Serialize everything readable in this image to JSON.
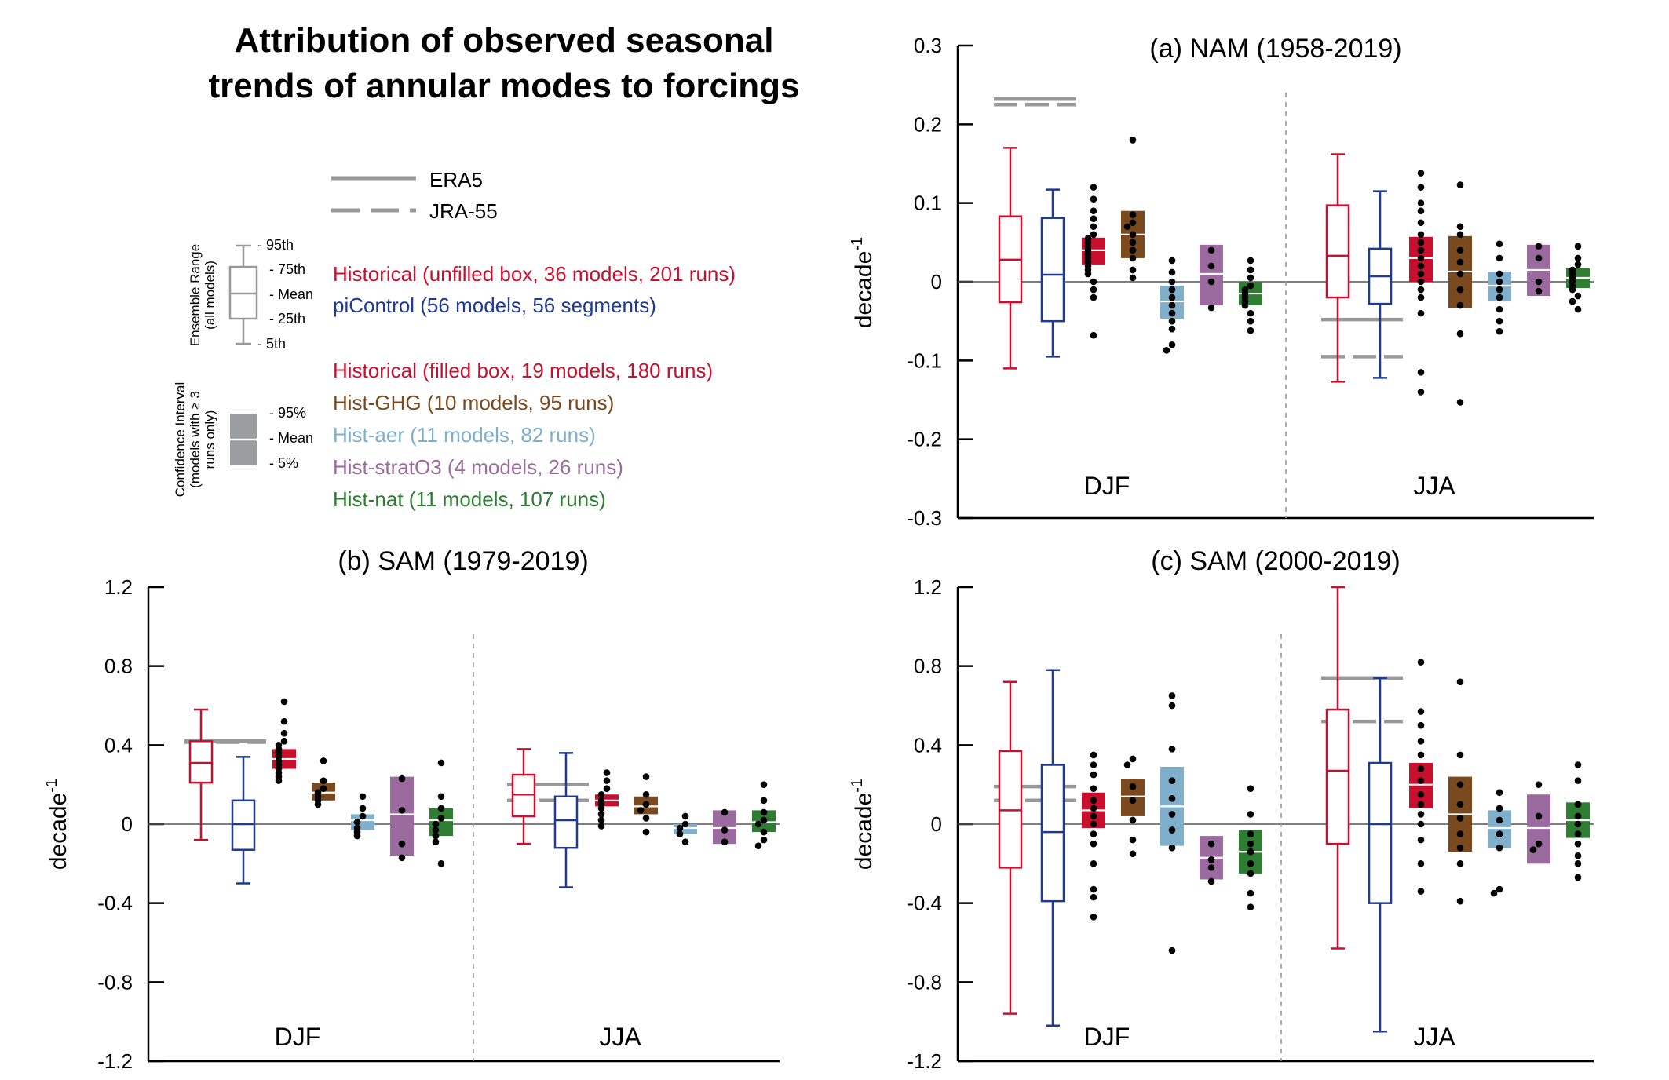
{
  "figure": {
    "title_line1": "Attribution of observed seasonal",
    "title_line2": "trends of annular modes to forcings"
  },
  "colors": {
    "historical": "#C8102E",
    "picontrol": "#1F3A93",
    "hist_ghg": "#7A4A1E",
    "hist_aer": "#7FAFCB",
    "hist_strato3": "#9B6A9E",
    "hist_nat": "#2E7D32",
    "obs": "#999999",
    "dots": "#000000"
  },
  "legend": {
    "obs_era5": "ERA5",
    "obs_jra55": "JRA-55",
    "ensemble_range_label_1": "Ensemble Range",
    "ensemble_range_label_2": "(all models)",
    "p95": "- 95th",
    "p75": "- 75th",
    "mean": "- Mean",
    "p25": "- 25th",
    "p5": "- 5th",
    "ci_label_1": "Confidence Interval",
    "ci_label_2": "(models with ≥ 3",
    "ci_label_3": "runs only)",
    "ci95": "- 95%",
    "ci_mean": "- Mean",
    "ci5": "- 5%",
    "entries": [
      {
        "key": "historical",
        "text": "Historical (unfilled box, 36 models, 201 runs)"
      },
      {
        "key": "picontrol",
        "text": "piControl (56 models, 56 segments)"
      },
      {
        "key": "historical",
        "text": "Historical (filled box, 19 models, 180 runs)"
      },
      {
        "key": "hist_ghg",
        "text": "Hist-GHG (10 models, 95 runs)"
      },
      {
        "key": "hist_aer",
        "text": "Hist-aer (11 models, 82 runs)"
      },
      {
        "key": "hist_strato3",
        "text": "Hist-stratO3 (4 models, 26 runs)"
      },
      {
        "key": "hist_nat",
        "text": "Hist-nat (11 models, 107 runs)"
      }
    ]
  },
  "chart_data": [
    {
      "type": "box",
      "title": "(a) NAM (1958-2019)",
      "ylabel": "decade",
      "ylabel_sup": "-1",
      "ylim": [
        -0.3,
        0.3
      ],
      "yticks": [
        -0.3,
        -0.2,
        -0.1,
        0,
        0.1,
        0.2,
        0.3
      ],
      "ytick_labels": [
        "-0.3",
        "-0.2",
        "-0.1",
        "0",
        "0.1",
        "0.2",
        "0.3"
      ],
      "groups": [
        {
          "label": "DJF",
          "obs": {
            "era5": 0.232,
            "jra55": 0.225
          },
          "unfilled": [
            {
              "key": "historical",
              "p5": -0.11,
              "p25": -0.026,
              "mean": 0.028,
              "p75": 0.083,
              "p95": 0.17
            },
            {
              "key": "picontrol",
              "p5": -0.095,
              "p25": -0.05,
              "mean": 0.009,
              "p75": 0.081,
              "p95": 0.117
            }
          ],
          "filled": [
            {
              "key": "historical",
              "lo": 0.022,
              "mean": 0.04,
              "hi": 0.056,
              "dots": [
                0.12,
                0.105,
                0.09,
                0.08,
                0.07,
                0.06,
                0.055,
                0.05,
                0.045,
                0.04,
                0.035,
                0.03,
                0.025,
                0.02,
                0.015,
                0.01,
                0.0,
                -0.01,
                -0.02,
                -0.068
              ]
            },
            {
              "key": "hist_ghg",
              "lo": 0.03,
              "mean": 0.06,
              "hi": 0.09,
              "dots": [
                0.18,
                0.085,
                0.075,
                0.07,
                0.06,
                0.05,
                0.04,
                0.03,
                0.015,
                0.005
              ]
            },
            {
              "key": "hist_aer",
              "lo": -0.047,
              "mean": -0.025,
              "hi": -0.005,
              "dots": [
                0.027,
                0.012,
                0.0,
                -0.01,
                -0.02,
                -0.03,
                -0.04,
                -0.05,
                -0.06,
                -0.08,
                -0.087
              ]
            },
            {
              "key": "hist_strato3",
              "lo": -0.03,
              "mean": 0.01,
              "hi": 0.047,
              "dots": [
                0.04,
                0.02,
                0.0,
                -0.033
              ]
            },
            {
              "key": "hist_nat",
              "lo": -0.03,
              "mean": -0.015,
              "hi": 0.0,
              "dots": [
                0.027,
                0.015,
                0.005,
                -0.005,
                -0.01,
                -0.015,
                -0.02,
                -0.025,
                -0.03,
                -0.04,
                -0.05,
                -0.062
              ]
            }
          ]
        },
        {
          "label": "JJA",
          "obs": {
            "era5": -0.048,
            "jra55": -0.095
          },
          "unfilled": [
            {
              "key": "historical",
              "p5": -0.127,
              "p25": -0.02,
              "mean": 0.033,
              "p75": 0.097,
              "p95": 0.162
            },
            {
              "key": "picontrol",
              "p5": -0.122,
              "p25": -0.028,
              "mean": 0.007,
              "p75": 0.042,
              "p95": 0.115
            }
          ],
          "filled": [
            {
              "key": "historical",
              "lo": 0.0,
              "mean": 0.03,
              "hi": 0.057,
              "dots": [
                0.138,
                0.12,
                0.1,
                0.09,
                0.075,
                0.06,
                0.05,
                0.04,
                0.03,
                0.02,
                0.01,
                0.0,
                -0.01,
                -0.02,
                -0.04,
                -0.115,
                -0.14
              ]
            },
            {
              "key": "hist_ghg",
              "lo": -0.033,
              "mean": 0.013,
              "hi": 0.058,
              "dots": [
                0.123,
                0.07,
                0.06,
                0.04,
                0.025,
                0.01,
                -0.01,
                -0.03,
                -0.066,
                -0.153
              ]
            },
            {
              "key": "hist_aer",
              "lo": -0.025,
              "mean": -0.005,
              "hi": 0.013,
              "dots": [
                0.048,
                0.03,
                0.01,
                0.0,
                -0.01,
                -0.02,
                -0.035,
                -0.05,
                -0.063
              ]
            },
            {
              "key": "hist_strato3",
              "lo": -0.018,
              "mean": 0.015,
              "hi": 0.047,
              "dots": [
                0.045,
                0.03,
                0.0,
                -0.012
              ]
            },
            {
              "key": "hist_nat",
              "lo": -0.008,
              "mean": 0.005,
              "hi": 0.017,
              "dots": [
                0.045,
                0.03,
                0.022,
                0.015,
                0.01,
                0.005,
                0.0,
                -0.005,
                -0.01,
                -0.018,
                -0.025,
                -0.035
              ]
            }
          ]
        }
      ]
    },
    {
      "type": "box",
      "title": "(b) SAM (1979-2019)",
      "ylabel": "decade",
      "ylabel_sup": "-1",
      "ylim": [
        -1.2,
        1.2
      ],
      "yticks": [
        -1.2,
        -0.8,
        -0.4,
        0,
        0.4,
        0.8,
        1.2
      ],
      "ytick_labels": [
        "-1.2",
        "-0.8",
        "-0.4",
        "0",
        "0.4",
        "0.8",
        "1.2"
      ],
      "groups": [
        {
          "label": "DJF",
          "obs": {
            "era5": 0.42,
            "jra55": 0.415
          },
          "unfilled": [
            {
              "key": "historical",
              "p5": -0.08,
              "p25": 0.21,
              "mean": 0.31,
              "p75": 0.42,
              "p95": 0.58
            },
            {
              "key": "picontrol",
              "p5": -0.3,
              "p25": -0.13,
              "mean": 0.0,
              "p75": 0.12,
              "p95": 0.34
            }
          ],
          "filled": [
            {
              "key": "historical",
              "lo": 0.28,
              "mean": 0.33,
              "hi": 0.38,
              "dots": [
                0.62,
                0.52,
                0.46,
                0.42,
                0.4,
                0.38,
                0.36,
                0.34,
                0.32,
                0.3,
                0.28,
                0.26,
                0.24,
                0.22
              ]
            },
            {
              "key": "hist_ghg",
              "lo": 0.12,
              "mean": 0.16,
              "hi": 0.21,
              "dots": [
                0.32,
                0.22,
                0.18,
                0.16,
                0.14,
                0.12,
                0.1
              ]
            },
            {
              "key": "hist_aer",
              "lo": -0.03,
              "mean": 0.02,
              "hi": 0.05,
              "dots": [
                0.14,
                0.08,
                0.04,
                0.01,
                -0.02,
                -0.04,
                -0.06
              ]
            },
            {
              "key": "hist_strato3",
              "lo": -0.16,
              "mean": 0.05,
              "hi": 0.24,
              "dots": [
                0.23,
                0.07,
                -0.1,
                -0.17
              ]
            },
            {
              "key": "hist_nat",
              "lo": -0.06,
              "mean": 0.02,
              "hi": 0.08,
              "dots": [
                0.31,
                0.14,
                0.08,
                0.03,
                0.0,
                -0.03,
                -0.06,
                -0.09,
                -0.2
              ]
            }
          ]
        },
        {
          "label": "JJA",
          "obs": {
            "era5": 0.2,
            "jra55": 0.12
          },
          "unfilled": [
            {
              "key": "historical",
              "p5": -0.1,
              "p25": 0.04,
              "mean": 0.15,
              "p75": 0.25,
              "p95": 0.38
            },
            {
              "key": "picontrol",
              "p5": -0.32,
              "p25": -0.12,
              "mean": 0.02,
              "p75": 0.14,
              "p95": 0.36
            }
          ],
          "filled": [
            {
              "key": "historical",
              "lo": 0.09,
              "mean": 0.12,
              "hi": 0.15,
              "dots": [
                0.26,
                0.22,
                0.18,
                0.15,
                0.12,
                0.1,
                0.08,
                0.05,
                0.02,
                -0.01
              ]
            },
            {
              "key": "hist_ghg",
              "lo": 0.05,
              "mean": 0.09,
              "hi": 0.14,
              "dots": [
                0.24,
                0.15,
                0.1,
                0.07,
                0.03,
                -0.04
              ]
            },
            {
              "key": "hist_aer",
              "lo": -0.05,
              "mean": -0.02,
              "hi": 0.0,
              "dots": [
                0.04,
                0.0,
                -0.02,
                -0.05,
                -0.09
              ]
            },
            {
              "key": "hist_strato3",
              "lo": -0.1,
              "mean": -0.02,
              "hi": 0.07,
              "dots": [
                0.06,
                -0.03,
                -0.09
              ]
            },
            {
              "key": "hist_nat",
              "lo": -0.04,
              "mean": 0.01,
              "hi": 0.07,
              "dots": [
                0.2,
                0.12,
                0.06,
                0.02,
                0.0,
                -0.04,
                -0.08,
                -0.11
              ]
            }
          ]
        }
      ]
    },
    {
      "type": "box",
      "title": "(c) SAM (2000-2019)",
      "ylabel": "decade",
      "ylabel_sup": "-1",
      "ylim": [
        -1.2,
        1.2
      ],
      "yticks": [
        -1.2,
        -0.8,
        -0.4,
        0,
        0.4,
        0.8,
        1.2
      ],
      "ytick_labels": [
        "-1.2",
        "-0.8",
        "-0.4",
        "0",
        "0.4",
        "0.8",
        "1.2"
      ],
      "groups": [
        {
          "label": "DJF",
          "obs": {
            "era5": 0.19,
            "jra55": 0.12
          },
          "unfilled": [
            {
              "key": "historical",
              "p5": -0.96,
              "p25": -0.22,
              "mean": 0.07,
              "p75": 0.37,
              "p95": 0.72
            },
            {
              "key": "picontrol",
              "p5": -1.02,
              "p25": -0.39,
              "mean": -0.04,
              "p75": 0.3,
              "p95": 0.78
            }
          ],
          "filled": [
            {
              "key": "historical",
              "lo": -0.02,
              "mean": 0.07,
              "hi": 0.16,
              "dots": [
                0.35,
                0.3,
                0.25,
                0.18,
                0.12,
                0.08,
                0.04,
                0.0,
                -0.05,
                -0.1,
                -0.2,
                -0.33,
                -0.37,
                -0.47
              ]
            },
            {
              "key": "hist_ghg",
              "lo": 0.04,
              "mean": 0.14,
              "hi": 0.23,
              "dots": [
                0.33,
                0.3,
                0.19,
                0.12,
                0.02,
                -0.08,
                -0.15
              ]
            },
            {
              "key": "hist_aer",
              "lo": -0.11,
              "mean": 0.09,
              "hi": 0.29,
              "dots": [
                0.65,
                0.6,
                0.38,
                0.22,
                0.13,
                0.05,
                -0.03,
                -0.12,
                -0.64
              ]
            },
            {
              "key": "hist_strato3",
              "lo": -0.28,
              "mean": -0.17,
              "hi": -0.06,
              "dots": [
                -0.1,
                -0.18,
                -0.22,
                -0.29
              ]
            },
            {
              "key": "hist_nat",
              "lo": -0.25,
              "mean": -0.14,
              "hi": -0.03,
              "dots": [
                0.18,
                0.05,
                -0.05,
                -0.1,
                -0.14,
                -0.2,
                -0.25,
                -0.35,
                -0.42
              ]
            }
          ]
        },
        {
          "label": "JJA",
          "obs": {
            "era5": 0.74,
            "jra55": 0.52
          },
          "unfilled": [
            {
              "key": "historical",
              "p5": -0.63,
              "p25": -0.1,
              "mean": 0.27,
              "p75": 0.58,
              "p95": 1.2
            },
            {
              "key": "picontrol",
              "p5": -1.05,
              "p25": -0.4,
              "mean": 0.0,
              "p75": 0.31,
              "p95": 0.74
            }
          ],
          "filled": [
            {
              "key": "historical",
              "lo": 0.08,
              "mean": 0.2,
              "hi": 0.31,
              "dots": [
                0.82,
                0.57,
                0.5,
                0.42,
                0.35,
                0.28,
                0.22,
                0.15,
                0.1,
                0.05,
                0.0,
                -0.08,
                -0.2,
                -0.34
              ]
            },
            {
              "key": "hist_ghg",
              "lo": -0.14,
              "mean": 0.05,
              "hi": 0.24,
              "dots": [
                0.72,
                0.35,
                0.2,
                0.1,
                0.03,
                -0.05,
                -0.12,
                -0.2,
                -0.39
              ]
            },
            {
              "key": "hist_aer",
              "lo": -0.12,
              "mean": -0.02,
              "hi": 0.07,
              "dots": [
                0.16,
                0.08,
                0.02,
                -0.05,
                -0.12,
                -0.33,
                -0.35
              ]
            },
            {
              "key": "hist_strato3",
              "lo": -0.2,
              "mean": -0.02,
              "hi": 0.15,
              "dots": [
                0.2,
                0.04,
                -0.1,
                -0.13
              ]
            },
            {
              "key": "hist_nat",
              "lo": -0.07,
              "mean": 0.02,
              "hi": 0.11,
              "dots": [
                0.3,
                0.22,
                0.1,
                0.04,
                0.0,
                -0.05,
                -0.1,
                -0.16,
                -0.2,
                -0.27
              ]
            }
          ]
        }
      ]
    }
  ]
}
